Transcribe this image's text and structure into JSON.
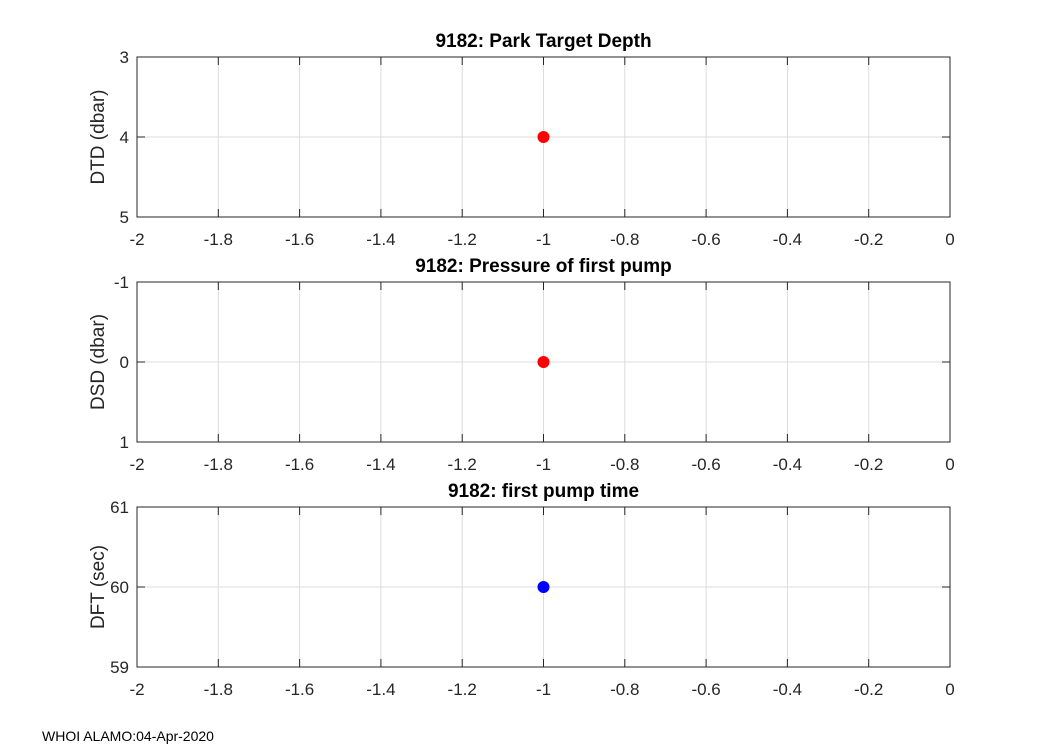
{
  "chart_data": [
    {
      "type": "scatter",
      "title": "9182: Park Target Depth",
      "xlabel": "",
      "ylabel": "DTD (dbar)",
      "xlim": [
        -2,
        0
      ],
      "ylim": [
        3,
        5
      ],
      "y_reversed": true,
      "xticks": [
        "-2",
        "-1.8",
        "-1.6",
        "-1.4",
        "-1.2",
        "-1",
        "-0.8",
        "-0.6",
        "-0.4",
        "-0.2",
        "0"
      ],
      "yticks": [
        "3",
        "4",
        "5"
      ],
      "grid": true,
      "points": [
        {
          "x": -1,
          "y": 4
        }
      ],
      "marker_color": "#ff0000"
    },
    {
      "type": "scatter",
      "title": "9182: Pressure of first pump",
      "xlabel": "",
      "ylabel": "DSD (dbar)",
      "xlim": [
        -2,
        0
      ],
      "ylim": [
        -1,
        1
      ],
      "y_reversed": true,
      "xticks": [
        "-2",
        "-1.8",
        "-1.6",
        "-1.4",
        "-1.2",
        "-1",
        "-0.8",
        "-0.6",
        "-0.4",
        "-0.2",
        "0"
      ],
      "yticks": [
        "-1",
        "0",
        "1"
      ],
      "grid": true,
      "points": [
        {
          "x": -1,
          "y": 0
        }
      ],
      "marker_color": "#ff0000"
    },
    {
      "type": "scatter",
      "title": "9182: first pump time",
      "xlabel": "",
      "ylabel": "DFT (sec)",
      "xlim": [
        -2,
        0
      ],
      "ylim": [
        59,
        61
      ],
      "y_reversed": false,
      "xticks": [
        "-2",
        "-1.8",
        "-1.6",
        "-1.4",
        "-1.2",
        "-1",
        "-0.8",
        "-0.6",
        "-0.4",
        "-0.2",
        "0"
      ],
      "yticks": [
        "59",
        "60",
        "61"
      ],
      "grid": true,
      "points": [
        {
          "x": -1,
          "y": 60
        }
      ],
      "marker_color": "#0000ff"
    }
  ],
  "footer": "WHOI ALAMO:04-Apr-2020"
}
